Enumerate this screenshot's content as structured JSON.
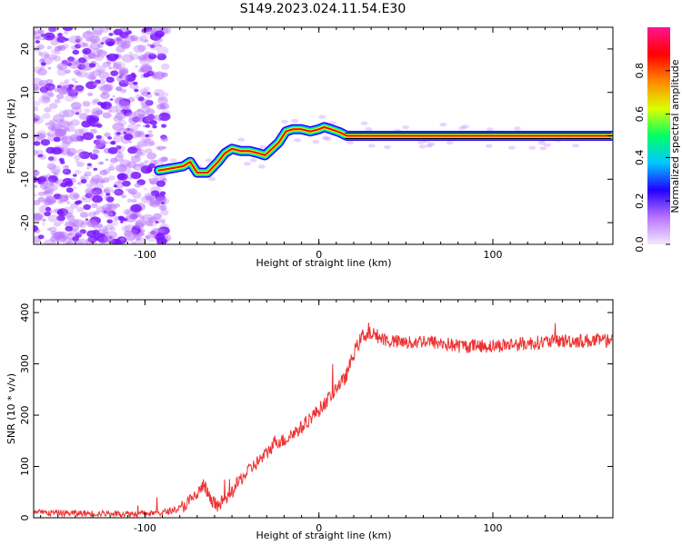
{
  "title": "S149.2023.024.11.54.E30",
  "colors": {
    "signal": "#ee3333",
    "scatter": "#b873ff",
    "frame": "#000000",
    "background": "#ffffff"
  },
  "chart_data": [
    {
      "type": "heatmap",
      "title": "S149.2023.024.11.54.E30",
      "xlabel": "Height of straight line (km)",
      "ylabel": "Frequency (Hz)",
      "xlim": [
        -164,
        169
      ],
      "ylim": [
        -25,
        25
      ],
      "xticks": [
        -100,
        0,
        100
      ],
      "xtick_labels": [
        "-100",
        "0",
        "100"
      ],
      "yticks": [
        -20,
        -10,
        0,
        10,
        20
      ],
      "ytick_labels": [
        "-20",
        "-10",
        "0",
        "10",
        "20"
      ],
      "grid": false,
      "noise_region_x": [
        -164,
        -88
      ],
      "ridge": {
        "x": [
          -92,
          -85,
          -78,
          -74,
          -70,
          -64,
          -58,
          -54,
          -50,
          -45,
          -40,
          -35,
          -31,
          -27,
          -23,
          -19,
          -15,
          -10,
          -5,
          0,
          3,
          7,
          12,
          16,
          20,
          40,
          80,
          120,
          160,
          168
        ],
        "y": [
          -8,
          -7.5,
          -7,
          -6,
          -8.5,
          -8.5,
          -6,
          -4,
          -3,
          -3.5,
          -3.5,
          -4,
          -4.5,
          -3,
          -1.5,
          1,
          1.5,
          1.5,
          1,
          1.5,
          2,
          1.5,
          0.8,
          0,
          0,
          0,
          0,
          0,
          0,
          0
        ]
      },
      "colorbar": {
        "label": "Normalized spectral amplitude",
        "ticks": [
          0.0,
          0.2,
          0.4,
          0.6,
          0.8
        ],
        "tick_labels": [
          "0.0",
          "0.2",
          "0.4",
          "0.6",
          "0.8"
        ],
        "range": [
          0,
          1
        ],
        "colormap": [
          "#f4e8ff",
          "#b873ff",
          "#2200ff",
          "#00c8ff",
          "#00ff66",
          "#dcff00",
          "#ff8800",
          "#ff0000",
          "#ff1493"
        ]
      }
    },
    {
      "type": "line",
      "xlabel": "Height of straight line (km)",
      "ylabel": "SNR (10 * v/v)",
      "xlim": [
        -164,
        169
      ],
      "ylim": [
        0,
        425
      ],
      "xticks": [
        -100,
        0,
        100
      ],
      "xtick_labels": [
        "-100",
        "0",
        "100"
      ],
      "yticks": [
        0,
        100,
        200,
        300,
        400
      ],
      "ytick_labels": [
        "0",
        "100",
        "200",
        "300",
        "400"
      ],
      "grid": false,
      "trend": {
        "x": [
          -164,
          -120,
          -100,
          -90,
          -80,
          -75,
          -70,
          -66,
          -62,
          -58,
          -52,
          -45,
          -38,
          -30,
          -25,
          -20,
          -15,
          -10,
          -5,
          0,
          5,
          10,
          15,
          20,
          25,
          30,
          40,
          50,
          60,
          70,
          80,
          100,
          120,
          140,
          160,
          169
        ],
        "y": [
          10,
          8,
          8,
          10,
          18,
          30,
          45,
          65,
          30,
          25,
          40,
          75,
          100,
          125,
          150,
          150,
          165,
          175,
          195,
          210,
          230,
          255,
          270,
          320,
          355,
          360,
          345,
          340,
          345,
          340,
          335,
          335,
          340,
          345,
          345,
          345
        ]
      },
      "noise_amplitude": 14
    }
  ]
}
